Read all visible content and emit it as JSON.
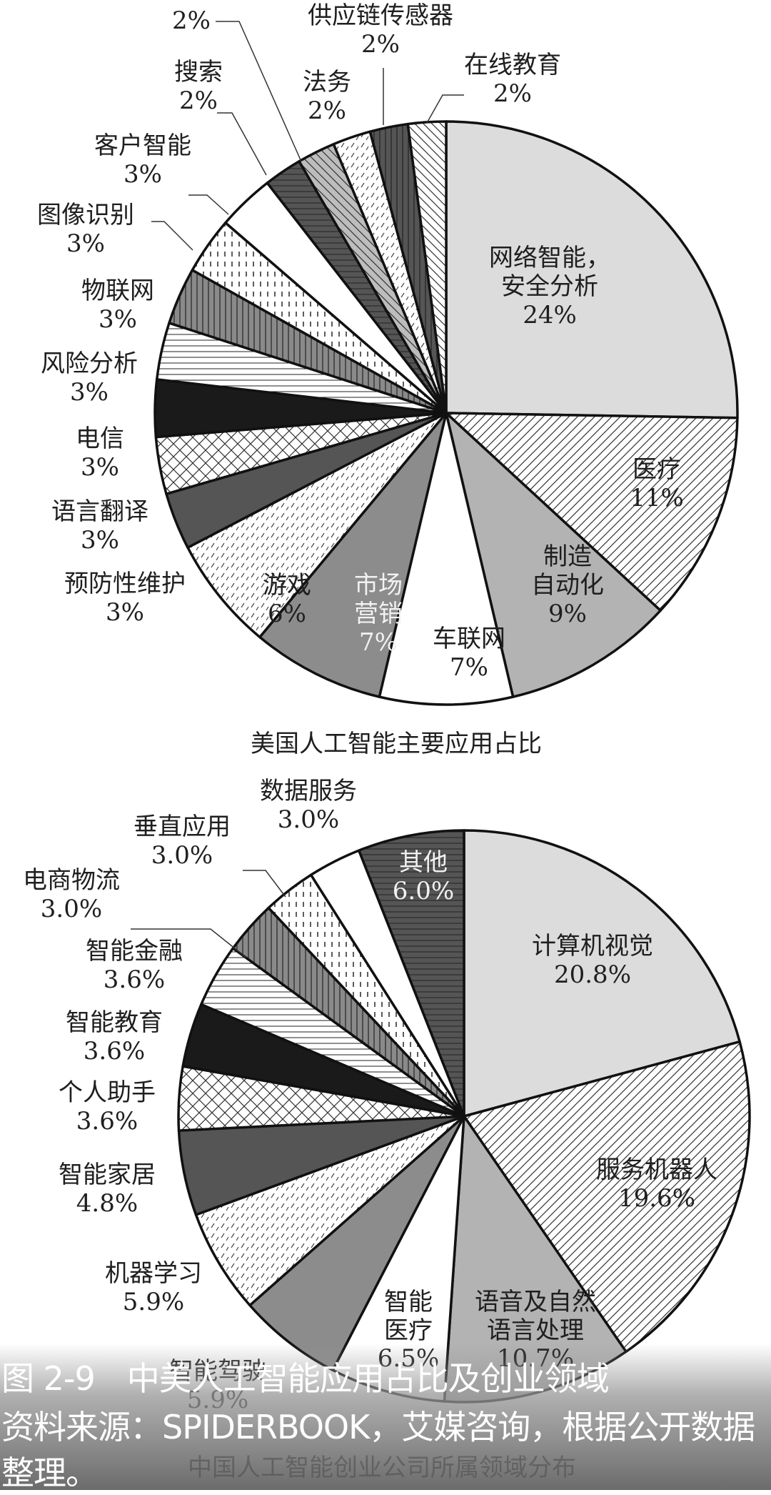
{
  "chart_data": [
    {
      "type": "pie",
      "title": "美国人工智能主要应用占比",
      "start_angle": "12 o'clock, clockwise",
      "categories": [
        "网络智能，安全分析",
        "医疗",
        "制造自动化",
        "车联网",
        "市场营销",
        "游戏",
        "预防性维护",
        "语言翻译",
        "电信",
        "风险分析",
        "物联网",
        "图像识别",
        "客户智能",
        "搜索",
        "(label cut off)",
        "法务",
        "供应链传感器",
        "在线教育"
      ],
      "values": [
        24,
        11,
        9,
        7,
        7,
        6,
        3,
        3,
        3,
        3,
        3,
        3,
        3,
        2,
        2,
        2,
        2,
        2
      ],
      "value_labels": [
        "24%",
        "11%",
        "9%",
        "7%",
        "7%",
        "6%",
        "3%",
        "3%",
        "3%",
        "3%",
        "3%",
        "3%",
        "3%",
        "2%",
        "2%",
        "2%",
        "2%",
        "2%"
      ],
      "unit": "%"
    },
    {
      "type": "pie",
      "title": "中国人工智能创业公司所属领域分布",
      "start_angle": "12 o'clock, clockwise",
      "categories": [
        "计算机视觉",
        "服务机器人",
        "语音及自然语言处理",
        "智能医疗",
        "智能驾驶",
        "机器学习",
        "智能家居",
        "个人助手",
        "智能教育",
        "智能金融",
        "电商物流",
        "垂直应用",
        "数据服务",
        "其他"
      ],
      "values": [
        20.8,
        19.6,
        10.7,
        6.5,
        5.9,
        5.9,
        4.8,
        3.6,
        3.6,
        3.6,
        3.0,
        3.0,
        3.0,
        6.0
      ],
      "value_labels": [
        "20.8%",
        "19.6%",
        "10.7%",
        "6.5%",
        "5.9%",
        "5.9%",
        "4.8%",
        "3.6%",
        "3.6%",
        "3.6%",
        "3.0%",
        "3.0%",
        "3.0%",
        "6.0%"
      ],
      "unit": "%"
    }
  ],
  "charts": {
    "us": {
      "title": "美国人工智能主要应用占比",
      "slices": [
        {
          "name": "网络智能，",
          "name2": "安全分析",
          "value": 24,
          "label": "24%",
          "fill": "#dcdcdc",
          "pattern": "none"
        },
        {
          "name": "医疗",
          "value": 11,
          "label": "11%",
          "fill": "#ffffff",
          "pattern": "diag-fwd"
        },
        {
          "name": "制造",
          "name2": "自动化",
          "value": 9,
          "label": "9%",
          "fill": "#b3b3b3",
          "pattern": "none"
        },
        {
          "name": "车联网",
          "value": 7,
          "label": "7%",
          "fill": "#ffffff",
          "pattern": "none"
        },
        {
          "name": "市场",
          "name2": "营销",
          "value": 7,
          "label": "7%",
          "fill": "#8c8c8c",
          "pattern": "none",
          "white_text": true
        },
        {
          "name": "游戏",
          "value": 6,
          "label": "6%",
          "fill": "#ffffff",
          "pattern": "dash"
        },
        {
          "name": "预防性维护",
          "value": 3,
          "label": "3%",
          "fill": "#555555",
          "pattern": "none"
        },
        {
          "name": "语言翻译",
          "value": 3,
          "label": "3%",
          "fill": "#ffffff",
          "pattern": "cross"
        },
        {
          "name": "电信",
          "value": 3,
          "label": "3%",
          "fill": "#1a1a1a",
          "pattern": "none"
        },
        {
          "name": "风险分析",
          "value": 3,
          "label": "3%",
          "fill": "#ffffff",
          "pattern": "horiz"
        },
        {
          "name": "物联网",
          "value": 3,
          "label": "3%",
          "fill": "#8a8a8a",
          "pattern": "vert"
        },
        {
          "name": "图像识别",
          "value": 3,
          "label": "3%",
          "fill": "#ffffff",
          "pattern": "vdash"
        },
        {
          "name": "客户智能",
          "value": 3,
          "label": "3%",
          "fill": "#ffffff",
          "pattern": "none"
        },
        {
          "name": "搜索",
          "value": 2,
          "label": "2%",
          "fill": "#555555",
          "pattern": "horiz"
        },
        {
          "name": "",
          "value": 2,
          "label": "2%",
          "fill": "#bdbdbd",
          "pattern": "diag-back"
        },
        {
          "name": "法务",
          "value": 2,
          "label": "2%",
          "fill": "#ffffff",
          "pattern": "dash"
        },
        {
          "name": "供应链传感器",
          "value": 2,
          "label": "2%",
          "fill": "#555555",
          "pattern": "vert"
        },
        {
          "name": "在线教育",
          "value": 2,
          "label": "2%",
          "fill": "#ffffff",
          "pattern": "diag-back"
        }
      ]
    },
    "cn": {
      "title": "中国人工智能创业公司所属领域分布",
      "slices": [
        {
          "name": "计算机视觉",
          "value": 20.8,
          "label": "20.8%",
          "fill": "#dcdcdc",
          "pattern": "none"
        },
        {
          "name": "服务机器人",
          "value": 19.6,
          "label": "19.6%",
          "fill": "#ffffff",
          "pattern": "diag-fwd"
        },
        {
          "name": "语音及自然",
          "name2": "语言处理",
          "value": 10.7,
          "label": "10.7%",
          "fill": "#b3b3b3",
          "pattern": "none"
        },
        {
          "name": "智能",
          "name2": "医疗",
          "value": 6.5,
          "label": "6.5%",
          "fill": "#ffffff",
          "pattern": "none"
        },
        {
          "name": "智能驾驶",
          "value": 5.9,
          "label": "5.9%",
          "fill": "#8c8c8c",
          "pattern": "none"
        },
        {
          "name": "机器学习",
          "value": 5.9,
          "label": "5.9%",
          "fill": "#ffffff",
          "pattern": "dash"
        },
        {
          "name": "智能家居",
          "value": 4.8,
          "label": "4.8%",
          "fill": "#555555",
          "pattern": "none"
        },
        {
          "name": "个人助手",
          "value": 3.6,
          "label": "3.6%",
          "fill": "#ffffff",
          "pattern": "cross"
        },
        {
          "name": "智能教育",
          "value": 3.6,
          "label": "3.6%",
          "fill": "#1a1a1a",
          "pattern": "none"
        },
        {
          "name": "智能金融",
          "value": 3.6,
          "label": "3.6%",
          "fill": "#ffffff",
          "pattern": "horiz"
        },
        {
          "name": "电商物流",
          "value": 3.0,
          "label": "3.0%",
          "fill": "#8a8a8a",
          "pattern": "vert"
        },
        {
          "name": "垂直应用",
          "value": 3.0,
          "label": "3.0%",
          "fill": "#ffffff",
          "pattern": "vdash"
        },
        {
          "name": "数据服务",
          "value": 3.0,
          "label": "3.0%",
          "fill": "#ffffff",
          "pattern": "none"
        },
        {
          "name": "其他",
          "value": 6.0,
          "label": "6.0%",
          "fill": "#555555",
          "pattern": "horiz",
          "white_text": true
        }
      ]
    }
  },
  "caption": {
    "figure_title": "图 2-9　中美人工智能应用占比及创业领域",
    "source_line1": "资料来源：SPIDERBOOK，艾媒咨询，根据公开数据",
    "source_line2": "整理。"
  }
}
